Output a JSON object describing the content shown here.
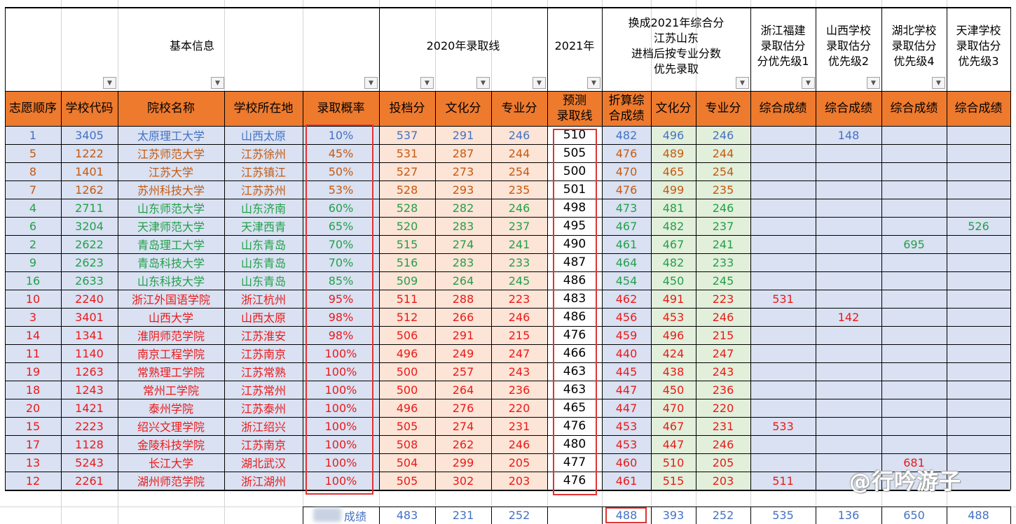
{
  "headers": {
    "group_basic": "基本信息",
    "group_2020": "2020年录取线",
    "group_2021": "2021年",
    "group_convert_lines": [
      "换成2021年综合分",
      "江苏山东",
      "进档后按专业分数",
      "优先录取"
    ],
    "group_zhejiang_lines": [
      "浙江福建",
      "录取估分",
      "分优先级1"
    ],
    "group_shanxi_lines": [
      "山西学校",
      "录取估分",
      "优先级2"
    ],
    "group_hubei_lines": [
      "湖北学校",
      "录取估分",
      "优先级4"
    ],
    "group_tianjin_lines": [
      "天津学校",
      "录取估分",
      "优先级3"
    ]
  },
  "columns": [
    [
      "志愿顺序"
    ],
    [
      "学校代码"
    ],
    [
      "院校名称"
    ],
    [
      "学校所在地"
    ],
    [
      "录取概率"
    ],
    [
      "投档分"
    ],
    [
      "文化分"
    ],
    [
      "专业分"
    ],
    [
      "预测",
      "录取线"
    ],
    [
      "折算综",
      "合成绩"
    ],
    [
      "文化分"
    ],
    [
      "专业分"
    ],
    [
      "综合成绩"
    ],
    [
      "综合成绩"
    ],
    [
      "综合成绩"
    ],
    [
      "综合成绩"
    ]
  ],
  "colors": {
    "header_orange": "#ee7a2e",
    "blue_text": "#4472c4",
    "orange_text": "#c55a11",
    "green_text": "#23a04a",
    "red_text": "#ea1a1a",
    "band_blue": "#d9e1f2",
    "band_peach": "#fce4d6",
    "band_green": "#e2efda",
    "highlight_red": "#e03333"
  },
  "rows": [
    {
      "color": "blue",
      "cells": [
        "1",
        "3405",
        "太原理工大学",
        "山西太原",
        "10%",
        "537",
        "291",
        "246",
        "510",
        "482",
        "496",
        "246",
        "",
        "148",
        "",
        ""
      ]
    },
    {
      "color": "orange",
      "cells": [
        "5",
        "1222",
        "江苏师范大学",
        "江苏徐州",
        "45%",
        "531",
        "287",
        "244",
        "505",
        "476",
        "489",
        "244",
        "",
        "",
        "",
        ""
      ]
    },
    {
      "color": "orange",
      "cells": [
        "8",
        "1401",
        "江苏大学",
        "江苏镇江",
        "50%",
        "527",
        "273",
        "254",
        "500",
        "470",
        "465",
        "254",
        "",
        "",
        "",
        ""
      ]
    },
    {
      "color": "orange",
      "cells": [
        "7",
        "1262",
        "苏州科技大学",
        "江苏苏州",
        "53%",
        "528",
        "293",
        "235",
        "501",
        "476",
        "499",
        "235",
        "",
        "",
        "",
        ""
      ]
    },
    {
      "color": "green",
      "cells": [
        "4",
        "2711",
        "山东师范大学",
        "山东济南",
        "60%",
        "528",
        "282",
        "246",
        "498",
        "473",
        "481",
        "246",
        "",
        "",
        "",
        ""
      ]
    },
    {
      "color": "green",
      "cells": [
        "6",
        "3204",
        "天津师范大学",
        "天津西青",
        "65%",
        "520",
        "283",
        "237",
        "495",
        "467",
        "482",
        "237",
        "",
        "",
        "",
        "526"
      ]
    },
    {
      "color": "green",
      "cells": [
        "2",
        "2622",
        "青岛理工大学",
        "山东青岛",
        "70%",
        "515",
        "274",
        "241",
        "490",
        "461",
        "467",
        "241",
        "",
        "",
        "695",
        ""
      ]
    },
    {
      "color": "green",
      "cells": [
        "9",
        "2623",
        "青岛科技大学",
        "山东青岛",
        "70%",
        "516",
        "283",
        "233",
        "487",
        "464",
        "482",
        "233",
        "",
        "",
        "",
        ""
      ]
    },
    {
      "color": "green",
      "cells": [
        "16",
        "2633",
        "山东科技大学",
        "山东青岛",
        "85%",
        "509",
        "264",
        "245",
        "486",
        "454",
        "450",
        "245",
        "",
        "",
        "",
        ""
      ]
    },
    {
      "color": "red",
      "cells": [
        "10",
        "2240",
        "浙江外国语学院",
        "浙江杭州",
        "95%",
        "511",
        "288",
        "223",
        "483",
        "462",
        "491",
        "223",
        "531",
        "",
        "",
        ""
      ]
    },
    {
      "color": "red",
      "cells": [
        "3",
        "3401",
        "山西大学",
        "山西太原",
        "98%",
        "512",
        "266",
        "246",
        "486",
        "456",
        "453",
        "246",
        "",
        "142",
        "",
        ""
      ]
    },
    {
      "color": "red",
      "cells": [
        "14",
        "1341",
        "淮阴师范学院",
        "江苏淮安",
        "98%",
        "506",
        "291",
        "215",
        "476",
        "459",
        "496",
        "215",
        "",
        "",
        "",
        ""
      ]
    },
    {
      "color": "red",
      "cells": [
        "11",
        "1140",
        "南京工程学院",
        "江苏南京",
        "100%",
        "496",
        "249",
        "247",
        "466",
        "440",
        "424",
        "247",
        "",
        "",
        "",
        ""
      ]
    },
    {
      "color": "red",
      "cells": [
        "19",
        "1263",
        "常熟理工学院",
        "江苏常熟",
        "100%",
        "500",
        "257",
        "243",
        "463",
        "445",
        "438",
        "243",
        "",
        "",
        "",
        ""
      ]
    },
    {
      "color": "red",
      "cells": [
        "18",
        "1243",
        "常州工学院",
        "江苏常州",
        "100%",
        "500",
        "264",
        "236",
        "463",
        "447",
        "450",
        "236",
        "",
        "",
        "",
        ""
      ]
    },
    {
      "color": "red",
      "cells": [
        "20",
        "1421",
        "泰州学院",
        "江苏泰州",
        "100%",
        "496",
        "276",
        "220",
        "465",
        "447",
        "470",
        "220",
        "",
        "",
        "",
        ""
      ]
    },
    {
      "color": "red",
      "cells": [
        "15",
        "2223",
        "绍兴文理学院",
        "浙江绍兴",
        "100%",
        "505",
        "274",
        "231",
        "476",
        "453",
        "467",
        "231",
        "533",
        "",
        "",
        ""
      ]
    },
    {
      "color": "red",
      "cells": [
        "17",
        "1128",
        "金陵科技学院",
        "江苏南京",
        "100%",
        "508",
        "262",
        "246",
        "480",
        "453",
        "447",
        "246",
        "",
        "",
        "",
        ""
      ]
    },
    {
      "color": "red",
      "cells": [
        "13",
        "5243",
        "长江大学",
        "湖北武汉",
        "100%",
        "504",
        "299",
        "205",
        "477",
        "460",
        "510",
        "205",
        "",
        "",
        "681",
        ""
      ]
    },
    {
      "color": "red",
      "cells": [
        "12",
        "2261",
        "湖州师范学院",
        "浙江湖州",
        "100%",
        "505",
        "302",
        "203",
        "476",
        "461",
        "515",
        "203",
        "511",
        "",
        "",
        ""
      ]
    }
  ],
  "summary": {
    "label": "成绩",
    "cells": [
      "",
      "",
      "",
      "",
      "",
      "483",
      "231",
      "252",
      "",
      "488",
      "393",
      "252",
      "535",
      "136",
      "650",
      "488"
    ]
  },
  "watermark": "@行吟游子"
}
